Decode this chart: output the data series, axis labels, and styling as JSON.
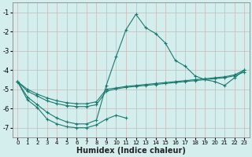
{
  "xlabel": "Humidex (Indice chaleur)",
  "bg_color": "#d4eeee",
  "grid_color": "#c8b8b8",
  "line_color": "#1a7a6e",
  "xlim": [
    -0.5,
    23.5
  ],
  "ylim": [
    -7.5,
    -0.5
  ],
  "yticks": [
    -7,
    -6,
    -5,
    -4,
    -3,
    -2,
    -1
  ],
  "xticks": [
    0,
    1,
    2,
    3,
    4,
    5,
    6,
    7,
    8,
    9,
    10,
    11,
    12,
    13,
    14,
    15,
    16,
    17,
    18,
    19,
    20,
    21,
    22,
    23
  ],
  "series": [
    {
      "x": [
        0,
        1,
        2,
        3,
        4,
        5,
        6,
        7,
        8,
        9,
        10,
        11,
        12,
        13,
        14,
        15,
        16,
        17,
        18,
        19,
        20,
        21,
        22,
        23
      ],
      "y": [
        -4.6,
        -5.4,
        -5.8,
        -6.2,
        -6.5,
        -6.7,
        -6.8,
        -6.8,
        -6.6,
        -4.8,
        -3.3,
        -1.9,
        -1.1,
        -1.8,
        -2.1,
        -2.6,
        -3.5,
        -3.8,
        -4.3,
        -4.5,
        -4.6,
        -4.8,
        -4.4,
        -4.0
      ]
    },
    {
      "x": [
        0,
        1,
        2,
        3,
        4,
        5,
        6,
        7,
        8,
        9,
        10,
        11
      ],
      "y": [
        -4.6,
        -5.55,
        -5.95,
        -6.55,
        -6.8,
        -6.95,
        -7.0,
        -7.0,
        -6.85,
        -6.55,
        -6.35,
        -6.5
      ]
    },
    {
      "x": [
        0,
        1,
        2,
        3,
        4,
        5,
        6,
        7,
        8,
        9,
        10,
        11,
        12,
        13,
        14,
        15,
        16,
        17,
        18,
        19,
        20,
        21,
        22,
        23
      ],
      "y": [
        -4.6,
        -5.1,
        -5.35,
        -5.6,
        -5.75,
        -5.85,
        -5.9,
        -5.9,
        -5.8,
        -5.1,
        -4.98,
        -4.9,
        -4.85,
        -4.8,
        -4.75,
        -4.7,
        -4.65,
        -4.6,
        -4.55,
        -4.5,
        -4.45,
        -4.4,
        -4.3,
        -4.1
      ]
    },
    {
      "x": [
        0,
        1,
        2,
        3,
        4,
        5,
        6,
        7,
        8,
        9,
        10,
        11,
        12,
        13,
        14,
        15,
        16,
        17,
        18,
        19,
        20,
        21,
        22,
        23
      ],
      "y": [
        -4.6,
        -5.0,
        -5.25,
        -5.45,
        -5.6,
        -5.7,
        -5.75,
        -5.75,
        -5.65,
        -5.0,
        -4.93,
        -4.85,
        -4.8,
        -4.75,
        -4.7,
        -4.65,
        -4.6,
        -4.55,
        -4.5,
        -4.45,
        -4.4,
        -4.35,
        -4.25,
        -4.0
      ]
    }
  ]
}
